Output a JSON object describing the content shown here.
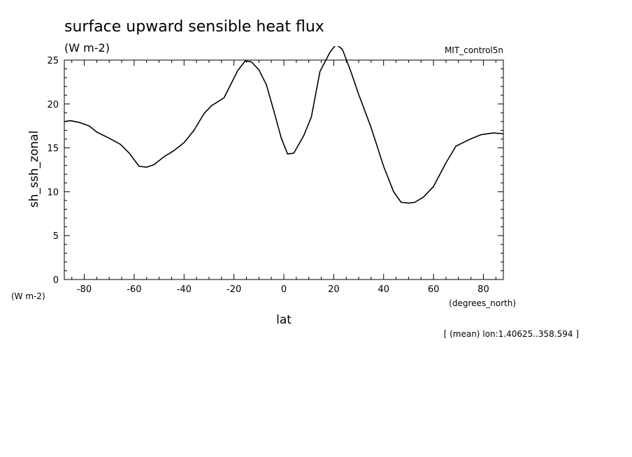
{
  "chart_data": {
    "type": "line",
    "title": "surface upward sensible heat flux",
    "subtitle": "(W m-2)",
    "run_label": "MIT_control5n",
    "xlabel": "lat",
    "x_units": "(degrees_north)",
    "ylabel": "sh_ssh_zonal",
    "y_units": "(W m-2)",
    "footnote": "[ (mean) lon:1.40625..358.594 ]",
    "xlim": [
      -88,
      88
    ],
    "ylim": [
      0,
      25
    ],
    "x_ticks": [
      -80,
      -60,
      -40,
      -20,
      0,
      20,
      40,
      60,
      80
    ],
    "y_ticks": [
      0,
      5,
      10,
      15,
      20,
      25
    ],
    "grid": false,
    "x": [
      -88,
      -85.5,
      -82,
      -78,
      -75,
      -70,
      -65.5,
      -62,
      -58,
      -55,
      -52,
      -48,
      -44,
      -40,
      -36,
      -32,
      -29,
      -24,
      -21.5,
      -18.5,
      -15.5,
      -13,
      -10,
      -7,
      -4,
      -1,
      1.5,
      4,
      8,
      11,
      14.5,
      18.5,
      21,
      23.5,
      27,
      30,
      35,
      40,
      44,
      47,
      50,
      52.5,
      56,
      60,
      65,
      69,
      74,
      79,
      84,
      88
    ],
    "values": [
      18,
      18.1,
      17.9,
      17.5,
      16.8,
      16.1,
      15.4,
      14.4,
      12.9,
      12.8,
      13.1,
      14,
      14.7,
      15.6,
      17,
      18.9,
      19.8,
      20.7,
      22.1,
      23.8,
      24.9,
      24.8,
      23.9,
      22.2,
      19.2,
      16.1,
      14.3,
      14.4,
      16.4,
      18.5,
      23.7,
      25.9,
      26.8,
      26.2,
      23.6,
      21.1,
      17.3,
      12.9,
      10,
      8.8,
      8.7,
      8.8,
      9.4,
      10.6,
      13.3,
      15.2,
      15.9,
      16.5,
      16.7,
      16.6
    ]
  }
}
